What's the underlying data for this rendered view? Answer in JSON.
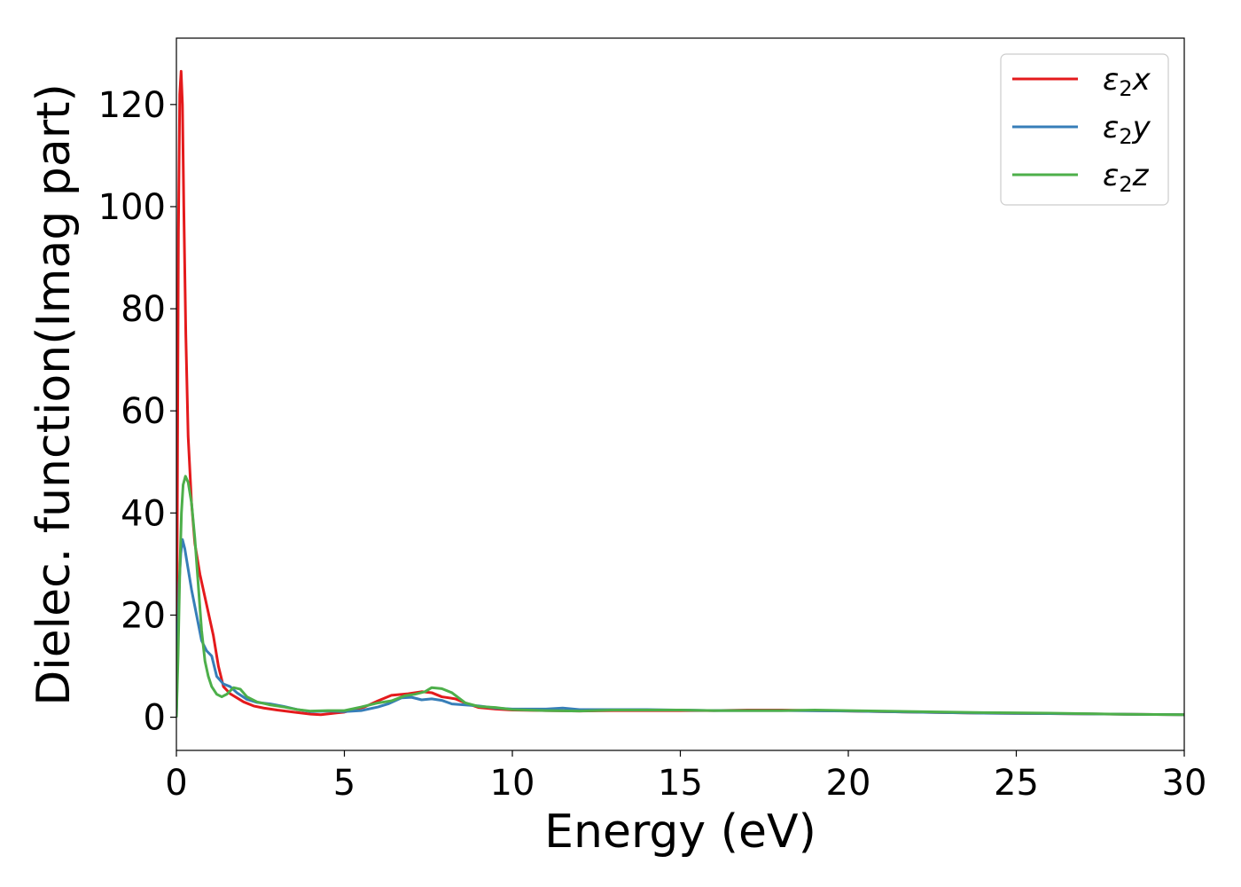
{
  "chart_data": {
    "type": "line",
    "xlabel": "Energy (eV)",
    "ylabel": "Dielec. function(Imag part)",
    "xlim": [
      0,
      30
    ],
    "ylim": [
      -6.5,
      133
    ],
    "x_ticks": [
      0,
      5,
      10,
      15,
      20,
      25,
      30
    ],
    "y_ticks": [
      0,
      20,
      40,
      60,
      80,
      100,
      120
    ],
    "grid": false,
    "legend_position": "top-right",
    "series": [
      {
        "name": "ε₂x",
        "legend_base": "ε",
        "legend_sub": "2",
        "legend_suffix": "x",
        "color": "#e41a1c",
        "x": [
          0,
          0.03,
          0.06,
          0.1,
          0.14,
          0.18,
          0.22,
          0.28,
          0.35,
          0.45,
          0.55,
          0.7,
          0.9,
          1.1,
          1.25,
          1.4,
          1.6,
          1.8,
          2.0,
          2.3,
          2.6,
          3.0,
          3.5,
          4.0,
          4.3,
          5.0,
          5.6,
          6.0,
          6.4,
          6.9,
          7.3,
          7.6,
          7.9,
          8.3,
          8.6,
          9.0,
          9.5,
          10.0,
          11,
          12,
          13,
          14,
          15,
          16,
          17,
          18,
          19,
          20,
          22,
          24,
          26,
          28,
          30
        ],
        "y": [
          0,
          45,
          95,
          122,
          126.5,
          120,
          100,
          75,
          55,
          42,
          34,
          28,
          22,
          16,
          10,
          6,
          4.6,
          3.8,
          3.0,
          2.2,
          1.8,
          1.4,
          1.0,
          0.6,
          0.5,
          1.0,
          2.0,
          3.2,
          4.3,
          4.6,
          5.0,
          4.8,
          4.0,
          3.6,
          2.8,
          1.9,
          1.6,
          1.4,
          1.3,
          1.2,
          1.3,
          1.3,
          1.3,
          1.3,
          1.4,
          1.4,
          1.3,
          1.2,
          1.0,
          0.8,
          0.7,
          0.6,
          0.5
        ]
      },
      {
        "name": "ε₂y",
        "legend_base": "ε",
        "legend_sub": "2",
        "legend_suffix": "y",
        "color": "#377eb8",
        "x": [
          0,
          0.04,
          0.08,
          0.13,
          0.18,
          0.25,
          0.35,
          0.45,
          0.6,
          0.75,
          0.9,
          1.05,
          1.2,
          1.4,
          1.6,
          1.8,
          2.1,
          2.4,
          2.8,
          3.2,
          3.6,
          4.0,
          4.5,
          5.0,
          5.5,
          6.0,
          6.3,
          6.7,
          7.0,
          7.3,
          7.6,
          7.9,
          8.2,
          8.6,
          9.0,
          9.5,
          10.0,
          11.0,
          11.5,
          12.0,
          13,
          14,
          15,
          16,
          17,
          18,
          20,
          22,
          24,
          26,
          28,
          30
        ],
        "y": [
          0,
          14,
          26,
          32,
          34.8,
          33,
          29,
          25,
          20,
          15,
          13,
          12,
          8,
          6.5,
          6.0,
          4.8,
          3.5,
          2.9,
          2.6,
          2.1,
          1.5,
          1.1,
          1.2,
          1.1,
          1.3,
          2.0,
          2.6,
          3.8,
          3.9,
          3.4,
          3.6,
          3.3,
          2.6,
          2.4,
          2.2,
          1.8,
          1.6,
          1.6,
          1.8,
          1.5,
          1.5,
          1.5,
          1.4,
          1.3,
          1.3,
          1.3,
          1.2,
          1.0,
          0.8,
          0.7,
          0.6,
          0.5
        ]
      },
      {
        "name": "ε₂z",
        "legend_base": "ε",
        "legend_sub": "2",
        "legend_suffix": "z",
        "color": "#4daf4a",
        "x": [
          0,
          0.05,
          0.1,
          0.15,
          0.2,
          0.27,
          0.35,
          0.45,
          0.55,
          0.65,
          0.75,
          0.85,
          0.95,
          1.05,
          1.2,
          1.35,
          1.5,
          1.7,
          1.9,
          2.1,
          2.4,
          2.8,
          3.2,
          3.6,
          4.0,
          4.5,
          5.0,
          5.5,
          6.0,
          6.4,
          6.8,
          7.1,
          7.4,
          7.6,
          7.9,
          8.2,
          8.6,
          9.0,
          9.5,
          10,
          11,
          12,
          13,
          14,
          15,
          16,
          17,
          18,
          19,
          20,
          22,
          24,
          26,
          28,
          30
        ],
        "y": [
          0,
          12,
          28,
          40,
          45.5,
          47.2,
          46,
          42,
          35,
          26,
          17,
          11,
          8,
          6,
          4.5,
          4.0,
          4.5,
          5.8,
          5.5,
          4.0,
          3.0,
          2.4,
          2.0,
          1.5,
          1.2,
          1.3,
          1.3,
          2.0,
          2.8,
          3.2,
          4.2,
          4.5,
          5.0,
          5.8,
          5.6,
          4.8,
          2.8,
          2.1,
          1.9,
          1.5,
          1.3,
          1.2,
          1.4,
          1.4,
          1.4,
          1.3,
          1.3,
          1.3,
          1.4,
          1.3,
          1.1,
          0.9,
          0.8,
          0.6,
          0.5
        ]
      }
    ]
  }
}
